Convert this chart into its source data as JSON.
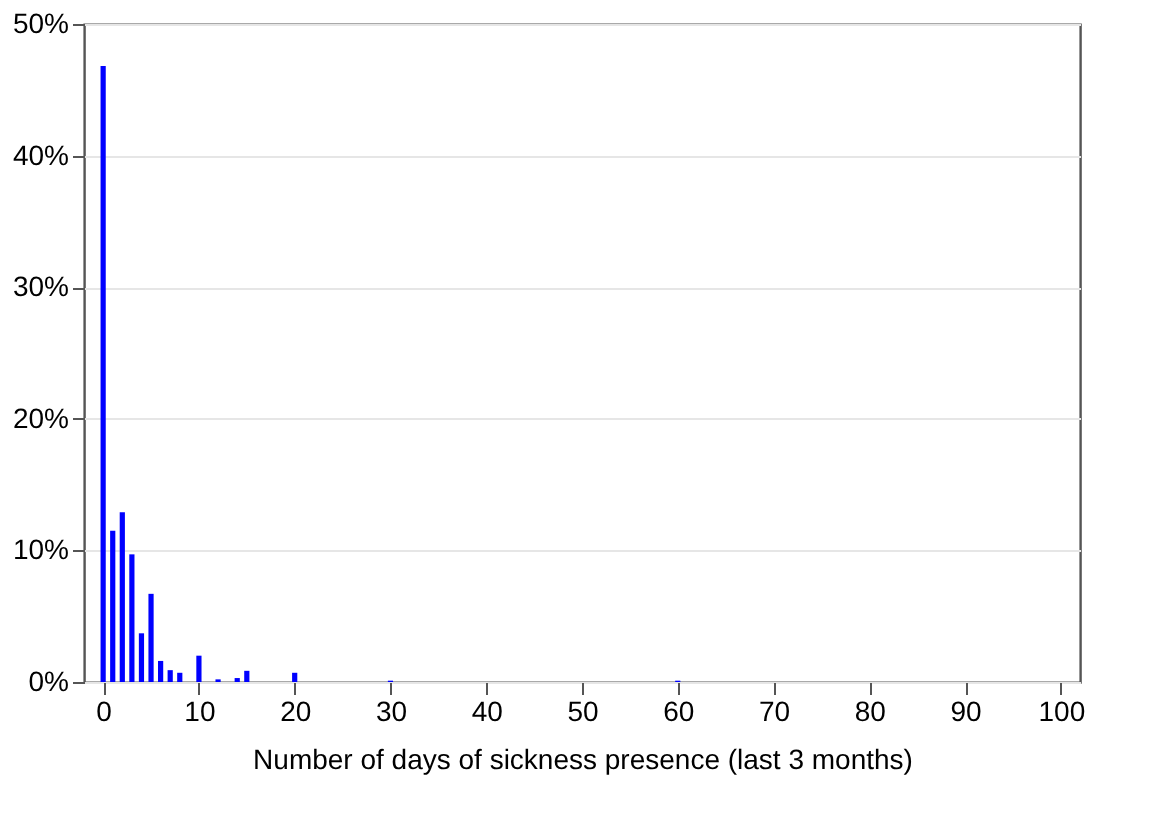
{
  "chart_data": {
    "type": "bar",
    "xlabel": "Number of days of sickness presence (last 3 months)",
    "x": [
      0,
      1,
      2,
      3,
      4,
      5,
      6,
      7,
      8,
      10,
      12,
      14,
      15,
      20,
      30,
      60
    ],
    "series": [
      {
        "color": "#0000ff",
        "values": [
          46.8,
          11.5,
          12.9,
          9.7,
          3.7,
          6.7,
          1.6,
          0.9,
          0.7,
          2.0,
          0.2,
          0.3,
          0.85,
          0.7,
          0.1,
          0.1
        ]
      }
    ],
    "xlim": [
      -2,
      102
    ],
    "xticks": [
      0,
      10,
      20,
      30,
      40,
      50,
      60,
      70,
      80,
      90,
      100
    ],
    "ylim": [
      0,
      50
    ],
    "yticks": [
      {
        "value": 0,
        "label": "0%"
      },
      {
        "value": 10,
        "label": "10%"
      },
      {
        "value": 20,
        "label": "20%"
      },
      {
        "value": 30,
        "label": "30%"
      },
      {
        "value": 40,
        "label": "40%"
      },
      {
        "value": 50,
        "label": "50%"
      }
    ],
    "grid": "y"
  }
}
